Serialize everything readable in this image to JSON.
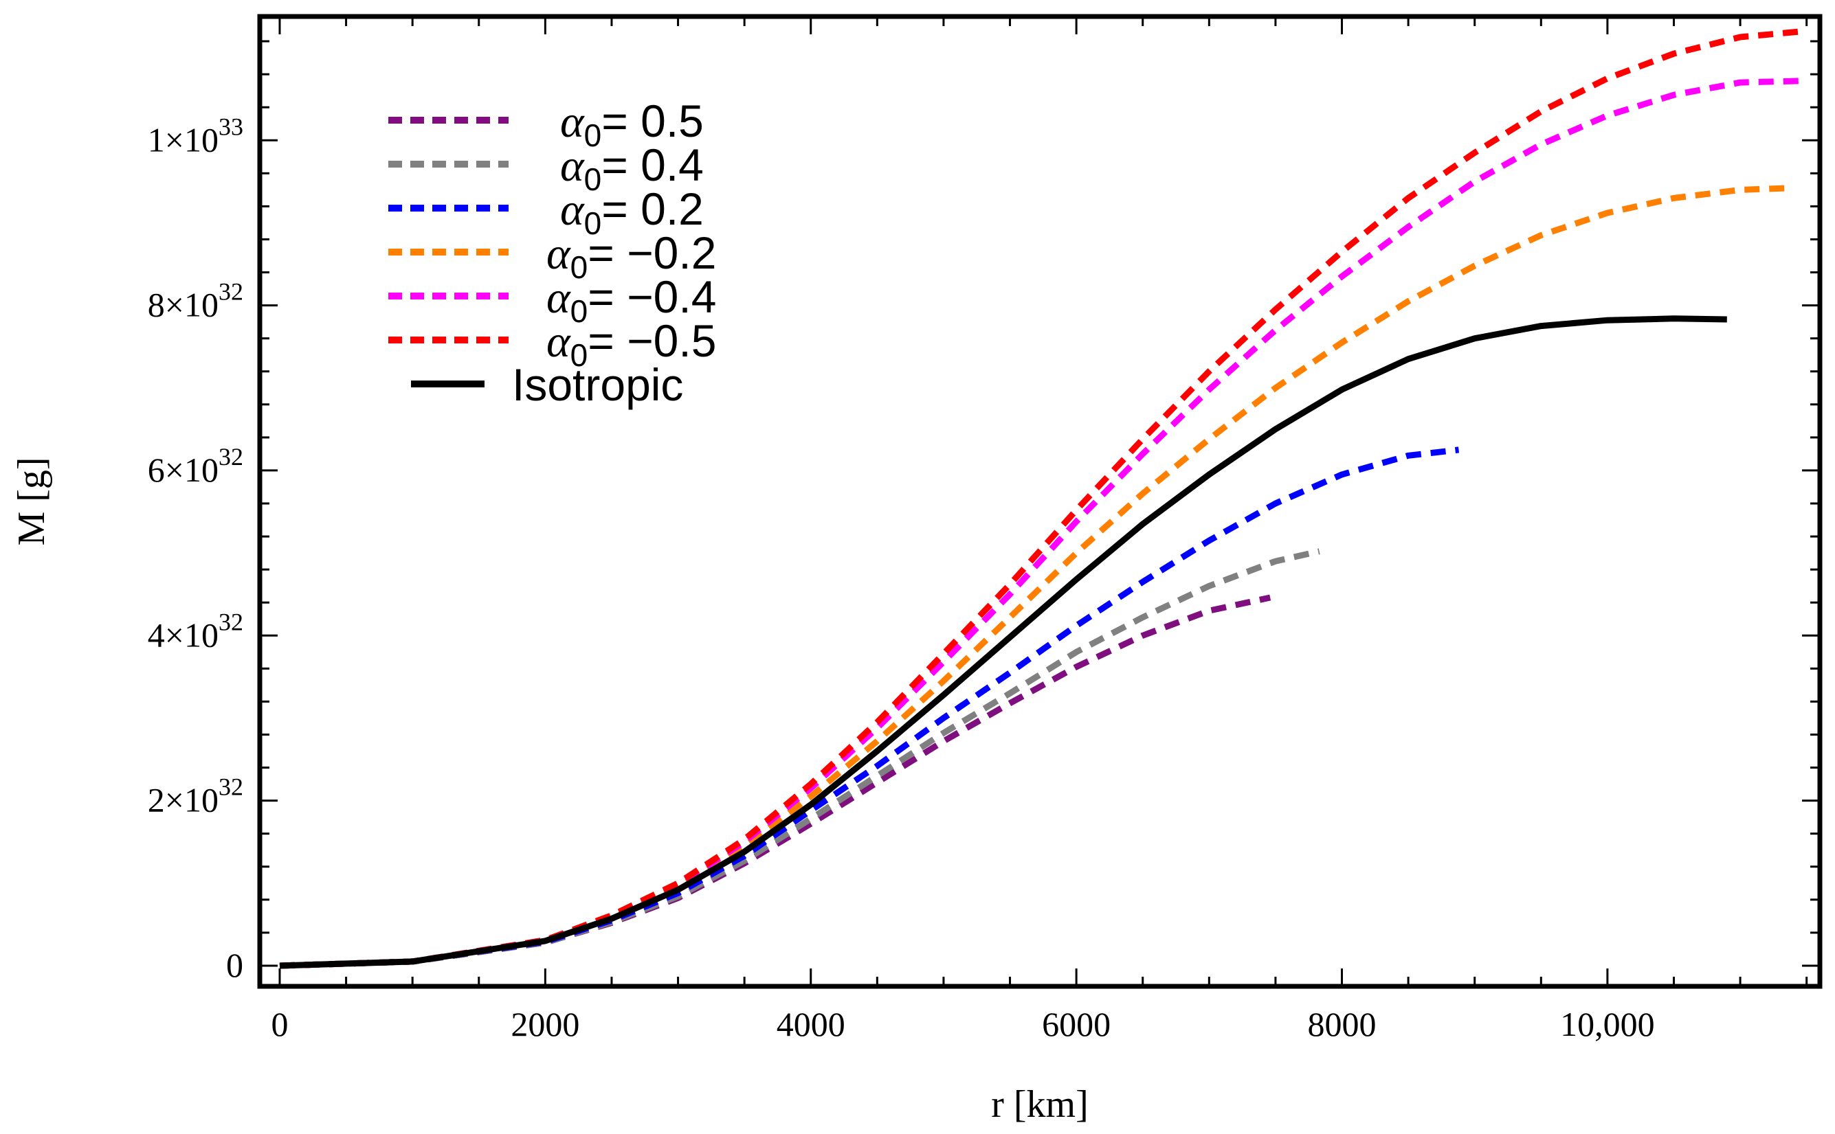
{
  "chart_data": {
    "type": "line",
    "title": "",
    "xlabel": "r [km]",
    "ylabel": "M [g]",
    "xlim": [
      -150,
      11600
    ],
    "ylim": [
      -2.5e+31,
      1.15e+33
    ],
    "x_ticks": [
      {
        "value": 0,
        "label": "0"
      },
      {
        "value": 2000,
        "label": "2000"
      },
      {
        "value": 4000,
        "label": "4000"
      },
      {
        "value": 6000,
        "label": "6000"
      },
      {
        "value": 8000,
        "label": "8000"
      },
      {
        "value": 10000,
        "label": "10,000"
      }
    ],
    "y_ticks": [
      {
        "value": 0,
        "mant": "0",
        "exp": ""
      },
      {
        "value": 2e+32,
        "mant": "2×10",
        "exp": "32"
      },
      {
        "value": 4e+32,
        "mant": "4×10",
        "exp": "32"
      },
      {
        "value": 6e+32,
        "mant": "6×10",
        "exp": "32"
      },
      {
        "value": 8e+32,
        "mant": "8×10",
        "exp": "32"
      },
      {
        "value": 1e+33,
        "mant": "1×10",
        "exp": "33"
      }
    ],
    "legend_position": "top-left",
    "series": [
      {
        "name": "α0= 0.5",
        "symbol": "α",
        "subscript": "0",
        "value_text": "= 0.5",
        "color": "#7f0f7e",
        "dashed": true,
        "x": [
          0,
          1000,
          2000,
          2500,
          3000,
          3500,
          4000,
          4500,
          5000,
          5500,
          6000,
          6500,
          7000,
          7460
        ],
        "y": [
          0,
          5e+30,
          2.8e+31,
          5.2e+31,
          8.2e+31,
          1.24e+32,
          1.72e+32,
          2.22e+32,
          2.72e+32,
          3.18e+32,
          3.62e+32,
          4e+32,
          4.3e+32,
          4.46e+32
        ]
      },
      {
        "name": "α0= 0.4",
        "symbol": "α",
        "subscript": "0",
        "value_text": "= 0.4",
        "color": "#808080",
        "dashed": true,
        "x": [
          0,
          1000,
          2000,
          2500,
          3000,
          3500,
          4000,
          4500,
          5000,
          5500,
          6000,
          6500,
          7000,
          7500,
          7830
        ],
        "y": [
          0,
          5e+30,
          2.8e+31,
          5.3e+31,
          8.4e+31,
          1.27e+32,
          1.78e+32,
          2.3e+32,
          2.82e+32,
          3.3e+32,
          3.8e+32,
          4.22e+32,
          4.6e+32,
          4.9e+32,
          5.02e+32
        ]
      },
      {
        "name": "α0= 0.2",
        "symbol": "α",
        "subscript": "0",
        "value_text": "= 0.2",
        "color": "#0000ff",
        "dashed": true,
        "x": [
          0,
          1000,
          2000,
          2500,
          3000,
          3500,
          4000,
          4500,
          5000,
          5500,
          6000,
          6500,
          7000,
          7500,
          8000,
          8500,
          8880
        ],
        "y": [
          0,
          5e+30,
          2.9e+31,
          5.5e+31,
          8.8e+31,
          1.33e+32,
          1.88e+32,
          2.42e+32,
          3e+32,
          3.55e+32,
          4.12e+32,
          4.65e+32,
          5.15e+32,
          5.6e+32,
          5.95e+32,
          6.18e+32,
          6.25e+32
        ]
      },
      {
        "name": "α0= −0.2",
        "symbol": "α",
        "subscript": "0",
        "value_text": "= −0.2",
        "color": "#ff8000",
        "dashed": true,
        "x": [
          0,
          1000,
          2000,
          2500,
          3000,
          3500,
          4000,
          4500,
          5000,
          5500,
          6000,
          6500,
          7000,
          7500,
          8000,
          8500,
          9000,
          9500,
          10000,
          10500,
          11000,
          11350
        ],
        "y": [
          0,
          5e+30,
          3e+31,
          5.8e+31,
          9.5e+31,
          1.45e+32,
          2.05e+32,
          2.72e+32,
          3.45e+32,
          4.22e+32,
          5e+32,
          5.72e+32,
          6.38e+32,
          7e+32,
          7.55e+32,
          8.05e+32,
          8.48e+32,
          8.85e+32,
          9.12e+32,
          9.3e+32,
          9.4e+32,
          9.42e+32
        ]
      },
      {
        "name": "α0= −0.4",
        "symbol": "α",
        "subscript": "0",
        "value_text": "= −0.4",
        "color": "#ff00ff",
        "dashed": true,
        "x": [
          0,
          1000,
          2000,
          2500,
          3000,
          3500,
          4000,
          4500,
          5000,
          5500,
          6000,
          6500,
          7000,
          7500,
          8000,
          8500,
          9000,
          9500,
          10000,
          10500,
          11000,
          11470
        ],
        "y": [
          0,
          5e+30,
          3.1e+31,
          6e+31,
          9.8e+31,
          1.5e+32,
          2.15e+32,
          2.88e+32,
          3.68e+32,
          4.5e+32,
          5.38e+32,
          6.2e+32,
          6.98e+32,
          7.7e+32,
          8.35e+32,
          8.95e+32,
          9.5e+32,
          9.95e+32,
          1.03e+33,
          1.055e+33,
          1.07e+33,
          1.072e+33
        ]
      },
      {
        "name": "α0= −0.5",
        "symbol": "α",
        "subscript": "0",
        "value_text": "= −0.5",
        "color": "#ff0000",
        "dashed": true,
        "x": [
          0,
          1000,
          2000,
          2500,
          3000,
          3500,
          4000,
          4500,
          5000,
          5500,
          6000,
          6500,
          7000,
          7500,
          8000,
          8500,
          9000,
          9500,
          10000,
          10500,
          11000,
          11470
        ],
        "y": [
          0,
          5e+30,
          3.1e+31,
          6.1e+31,
          1e+32,
          1.53e+32,
          2.2e+32,
          2.95e+32,
          3.78e+32,
          4.62e+32,
          5.52e+32,
          6.38e+32,
          7.2e+32,
          7.95e+32,
          8.65e+32,
          9.3e+32,
          9.85e+32,
          1.035e+33,
          1.075e+33,
          1.105e+33,
          1.125e+33,
          1.132e+33
        ]
      },
      {
        "name": "Isotropic",
        "symbol": "",
        "subscript": "",
        "value_text": "Isotropic",
        "color": "#000000",
        "dashed": false,
        "x": [
          0,
          1000,
          2000,
          2500,
          3000,
          3500,
          4000,
          4500,
          5000,
          5500,
          6000,
          6500,
          7000,
          7500,
          8000,
          8500,
          9000,
          9500,
          10000,
          10500,
          10900
        ],
        "y": [
          0,
          5e+30,
          3e+31,
          5.7e+31,
          9.2e+31,
          1.38e+32,
          1.95e+32,
          2.6e+32,
          3.28e+32,
          3.98e+32,
          4.68e+32,
          5.35e+32,
          5.95e+32,
          6.5e+32,
          6.98e+32,
          7.35e+32,
          7.6e+32,
          7.75e+32,
          7.82e+32,
          7.84e+32,
          7.83e+32
        ]
      }
    ]
  }
}
